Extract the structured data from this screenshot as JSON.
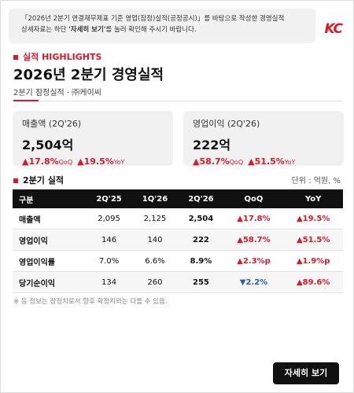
{
  "notice": {
    "line1": "「2026년 2분기 연결재무제표 기준 영업(잠정)실적(공정공시)」를 바탕으로 작성한 경영실적",
    "line2_before": "상세자료는 하단 ",
    "line2_bold": "'자세히 보기'",
    "line2_after": "를 눌러 확인해 주시기 바랍니다."
  },
  "logo": "KC",
  "section_label": "실적 HIGHLIGHTS",
  "title": "2026년 2분기 경영실적",
  "subtitle": "2분기 잠정실적 · ㈜케이씨",
  "kpis": [
    {
      "label": "매출액 (2Q'26)",
      "value": "2,504억",
      "changes": [
        {
          "value": "▲17.8%",
          "basis": "QoQ"
        },
        {
          "value": "▲19.5%",
          "basis": "YoY"
        }
      ]
    },
    {
      "label": "영업이익 (2Q'26)",
      "value": "222억",
      "changes": [
        {
          "value": "▲58.7%",
          "basis": "QoQ"
        },
        {
          "value": "▲51.5%",
          "basis": "YoY"
        }
      ]
    }
  ],
  "table": {
    "caption": "2분기 실적",
    "unit": "단위 : 억원, %",
    "headers": [
      "구분",
      "2Q'25",
      "1Q'26",
      "2Q'26",
      "QoQ",
      "YoY"
    ],
    "rows": [
      [
        "매출액",
        "2,095",
        "2,125",
        "2,504",
        "▲17.8%",
        "▲19.5%"
      ],
      [
        "영업이익",
        "146",
        "140",
        "222",
        "▲58.7%",
        "▲51.5%"
      ],
      [
        "영업이익률",
        "7.0%",
        "6.6%",
        "8.9%",
        "▲2.3%p",
        "▲1.9%p"
      ],
      [
        "당기순이익",
        "134",
        "260",
        "255",
        "▼2.2%",
        "▲89.6%"
      ]
    ]
  },
  "footnote": "※ 동 정보는 잠정치로서 향후 확정치와는 다를 수 있음.",
  "button": "자세히 보기"
}
